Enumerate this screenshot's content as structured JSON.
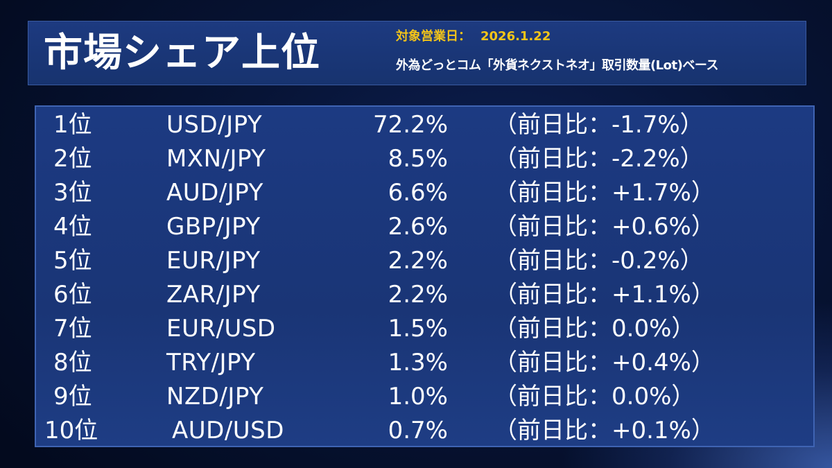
{
  "header": {
    "title": "市場シェア上位",
    "date_label": "対象営業日：",
    "date_value": "2026.1.22",
    "basis": "外為どっとコム「外貨ネクストネオ」取引数量(Lot)ベース"
  },
  "rankings": [
    {
      "rank": "1位",
      "pair": "USD/JPY",
      "share": "72.2%",
      "change": "（前日比：-1.7%）"
    },
    {
      "rank": "2位",
      "pair": "MXN/JPY",
      "share": "8.5%",
      "change": "（前日比：-2.2%）"
    },
    {
      "rank": "3位",
      "pair": "AUD/JPY",
      "share": "6.6%",
      "change": "（前日比：+1.7%）"
    },
    {
      "rank": "4位",
      "pair": "GBP/JPY",
      "share": "2.6%",
      "change": "（前日比：+0.6%）"
    },
    {
      "rank": "5位",
      "pair": "EUR/JPY",
      "share": "2.2%",
      "change": "（前日比：-0.2%）"
    },
    {
      "rank": "6位",
      "pair": "ZAR/JPY",
      "share": "2.2%",
      "change": "（前日比：+1.1%）"
    },
    {
      "rank": "7位",
      "pair": "EUR/USD",
      "share": "1.5%",
      "change": "（前日比：0.0%）"
    },
    {
      "rank": "8位",
      "pair": "TRY/JPY",
      "share": "1.3%",
      "change": "（前日比：+0.4%）"
    },
    {
      "rank": "9位",
      "pair": "NZD/JPY",
      "share": "1.0%",
      "change": "（前日比：0.0%）"
    },
    {
      "rank": "10位",
      "pair": "AUD/USD",
      "share": "0.7%",
      "change": "（前日比：+0.1%）"
    }
  ],
  "colors": {
    "accent": "#f5c518",
    "panel": "#1c3a82",
    "text": "#ffffff"
  }
}
